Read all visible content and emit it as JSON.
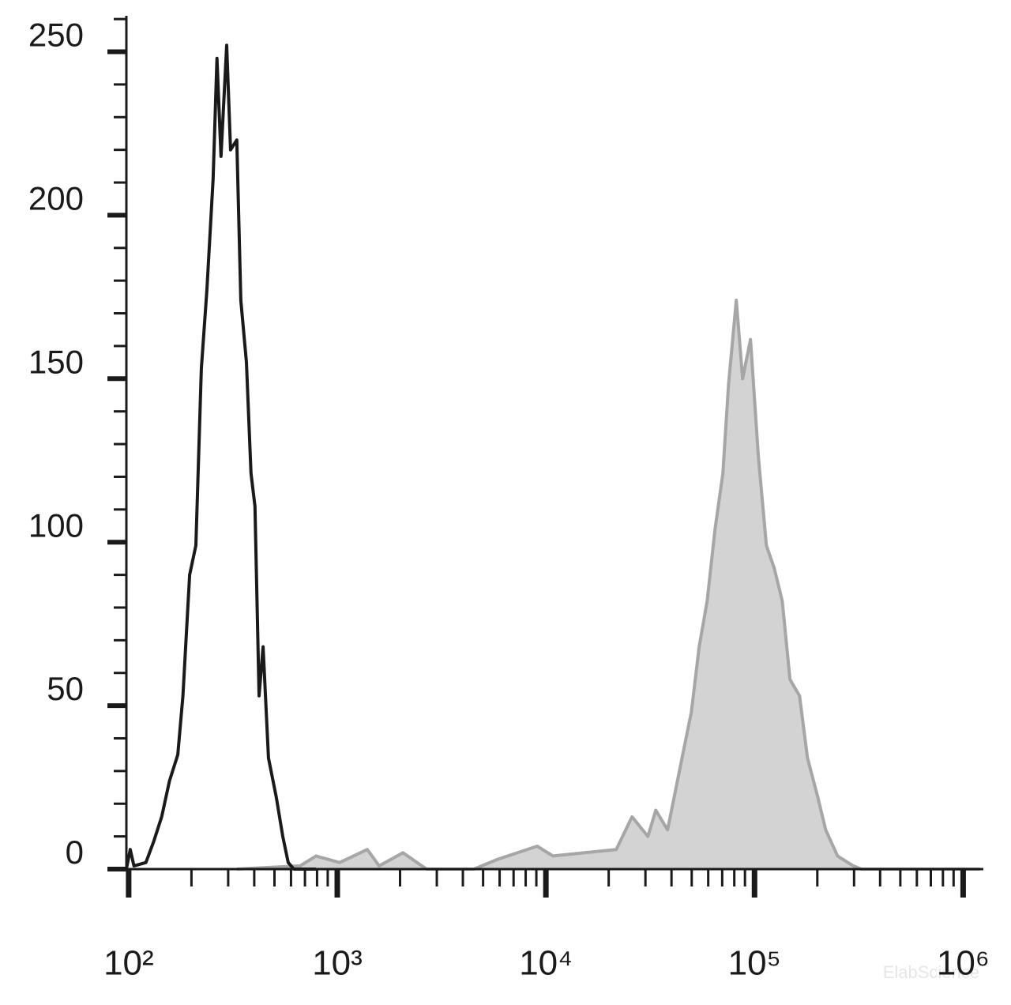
{
  "chart_data": {
    "type": "histogram-overlay",
    "xscale": "log",
    "xlim": [
      95,
      1250000
    ],
    "ylim": [
      0,
      261
    ],
    "xticks": [
      {
        "value": 100,
        "label": "10²"
      },
      {
        "value": 1000,
        "label": "10³"
      },
      {
        "value": 10000,
        "label": "10⁴"
      },
      {
        "value": 100000,
        "label": "10⁵"
      },
      {
        "value": 1000000,
        "label": "10⁶"
      }
    ],
    "xminorticks": [
      200,
      300,
      400,
      500,
      600,
      700,
      800,
      900,
      2000,
      3000,
      4000,
      5000,
      6000,
      7000,
      8000,
      9000,
      20000,
      30000,
      40000,
      50000,
      60000,
      70000,
      80000,
      90000,
      200000,
      300000,
      400000,
      500000,
      600000,
      700000,
      800000,
      900000
    ],
    "yticks": [
      0,
      50,
      100,
      150,
      200,
      250
    ],
    "yminorticks": [
      10,
      20,
      30,
      40,
      60,
      70,
      80,
      90,
      110,
      120,
      130,
      140,
      160,
      170,
      180,
      190,
      210,
      220,
      230,
      240,
      260
    ],
    "grid": false,
    "watermark": "ElabScience",
    "series": [
      {
        "color": "#a6a6a6",
        "fill": "#d3d3d3",
        "x": [
          330,
          664,
          791,
          1026,
          1393,
          1588,
          2063,
          2679,
          4520,
          5873,
          9080,
          10820,
          15340,
          21740,
          25880,
          30820,
          33630,
          38300,
          41800,
          45600,
          49800,
          54300,
          59300,
          64700,
          70500,
          75000,
          81800,
          87700,
          95700,
          104400,
          114000,
          124400,
          135800,
          148000,
          164400,
          179400,
          201000,
          219300,
          250000,
          297400,
          324500,
          1202000
        ],
        "values": [
          0,
          1,
          4,
          2,
          6,
          1,
          5,
          0,
          0,
          3,
          7,
          4,
          5,
          6,
          16,
          10,
          18,
          12,
          24,
          36,
          48,
          68,
          82,
          104,
          121,
          148,
          174,
          150,
          162,
          126,
          99,
          92,
          82,
          58,
          53,
          34,
          22,
          12,
          4,
          1,
          0,
          0
        ]
      },
      {
        "color": "#1a1a1a",
        "x": [
          97.5,
          101.8,
          106,
          121,
          132,
          144,
          157,
          172,
          182,
          196,
          210,
          223,
          237,
          254,
          265,
          277,
          295,
          308,
          330,
          345,
          367,
          386,
          403,
          422,
          441,
          468,
          510,
          548,
          582,
          619,
          791
        ],
        "values": [
          0,
          6,
          1,
          2,
          8.5,
          16,
          27,
          35,
          53,
          90,
          99,
          153,
          177,
          211,
          248,
          218,
          252,
          220,
          223,
          174,
          155,
          121,
          111,
          53,
          68,
          34,
          22,
          10,
          2,
          0,
          0
        ]
      }
    ]
  }
}
